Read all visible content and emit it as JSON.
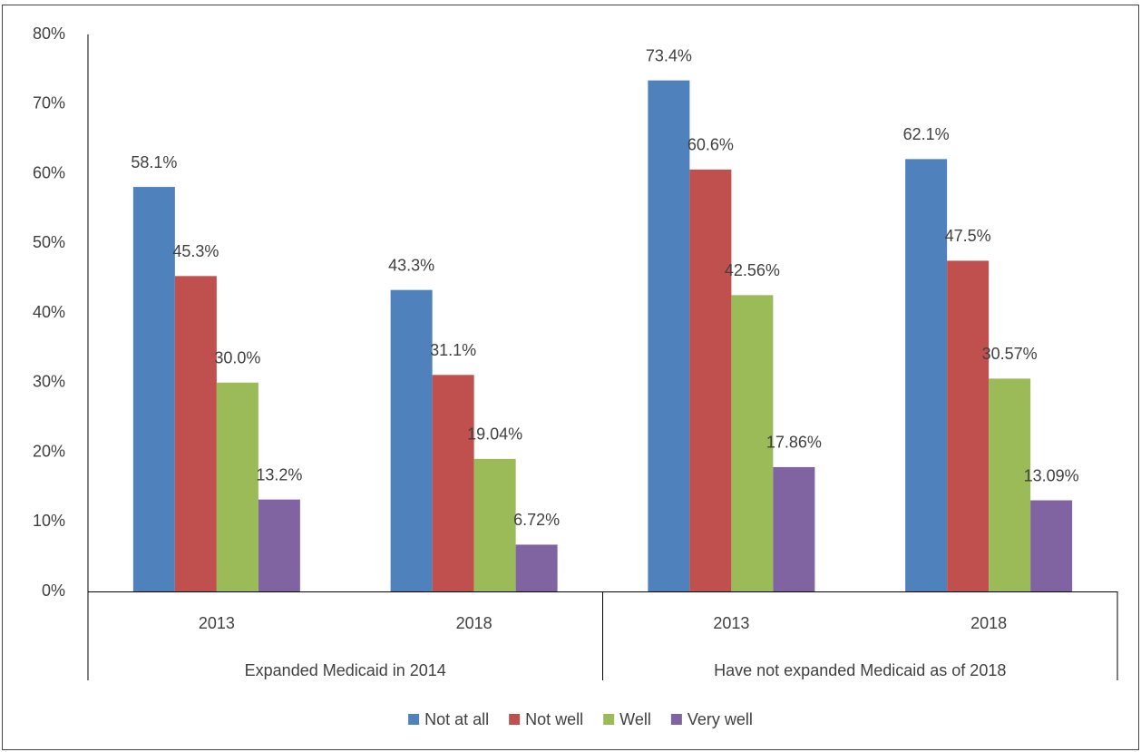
{
  "chart_data": {
    "type": "bar",
    "categories": [
      "2013",
      "2018",
      "2013",
      "2018"
    ],
    "groups": [
      "Expanded Medicaid in 2014",
      "Have not expanded Medicaid as of 2018"
    ],
    "series": [
      {
        "name": "Not at all",
        "color": "#4f81bd",
        "values": [
          58.1,
          43.3,
          73.4,
          62.1
        ],
        "value_labels": [
          "58.1%",
          "43.3%",
          "73.4%",
          "62.1%"
        ]
      },
      {
        "name": "Not well",
        "color": "#c0504d",
        "values": [
          45.3,
          31.1,
          60.6,
          47.5
        ],
        "value_labels": [
          "45.3%",
          "31.1%",
          "60.6%",
          "47.5%"
        ]
      },
      {
        "name": "Well",
        "color": "#9bbb59",
        "values": [
          30.0,
          19.04,
          42.56,
          30.57
        ],
        "value_labels": [
          "30.0%",
          "19.04%",
          "42.56%",
          "30.57%"
        ]
      },
      {
        "name": "Very well",
        "color": "#8064a2",
        "values": [
          13.2,
          6.72,
          17.86,
          13.09
        ],
        "value_labels": [
          "13.2%",
          "6.72%",
          "17.86%",
          "13.09%"
        ]
      }
    ],
    "ylim": [
      0,
      80
    ],
    "yticks": [
      {
        "value": 0,
        "label": "0%"
      },
      {
        "value": 10,
        "label": "10%"
      },
      {
        "value": 20,
        "label": "20%"
      },
      {
        "value": 30,
        "label": "30%"
      },
      {
        "value": 40,
        "label": "40%"
      },
      {
        "value": 50,
        "label": "50%"
      },
      {
        "value": 60,
        "label": "60%"
      },
      {
        "value": 70,
        "label": "70%"
      },
      {
        "value": 80,
        "label": "80%"
      }
    ],
    "grid": false,
    "legend": "bottom"
  }
}
